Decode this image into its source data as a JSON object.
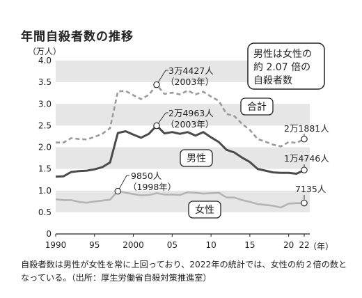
{
  "chart_data": {
    "type": "line",
    "title": "年間自殺者数の推移",
    "ylabel": "（万人）",
    "xlabel": "（年）",
    "ylim": [
      0,
      4.0
    ],
    "xlim": [
      1990,
      2022
    ],
    "y_ticks": [
      "0",
      "0.5",
      "1.0",
      "1.5",
      "2.0",
      "2.5",
      "3.0",
      "3.5",
      "4.0"
    ],
    "x_ticks": [
      {
        "x": 1990,
        "label": "1990"
      },
      {
        "x": 1995,
        "label": "95"
      },
      {
        "x": 2000,
        "label": "2000"
      },
      {
        "x": 2005,
        "label": "05"
      },
      {
        "x": 2010,
        "label": "10"
      },
      {
        "x": 2015,
        "label": "15"
      },
      {
        "x": 2020,
        "label": "20"
      },
      {
        "x": 2022,
        "label": "22"
      }
    ],
    "grid": "alternating horizontal bands",
    "x": [
      1990,
      1991,
      1992,
      1993,
      1994,
      1995,
      1996,
      1997,
      1998,
      1999,
      2000,
      2001,
      2002,
      2003,
      2004,
      2005,
      2006,
      2007,
      2008,
      2009,
      2010,
      2011,
      2012,
      2013,
      2014,
      2015,
      2016,
      2017,
      2018,
      2019,
      2020,
      2021,
      2022
    ],
    "series": [
      {
        "name": "合計",
        "style": "dashed",
        "color": "#9a9a9a",
        "values": [
          2.11,
          2.11,
          2.21,
          2.19,
          2.18,
          2.24,
          2.31,
          2.44,
          3.29,
          3.3,
          3.2,
          3.11,
          3.21,
          3.44,
          3.23,
          3.26,
          3.22,
          3.31,
          3.22,
          3.28,
          3.17,
          3.07,
          2.77,
          2.72,
          2.54,
          2.4,
          2.19,
          2.13,
          2.06,
          2.02,
          2.12,
          2.1,
          2.19
        ]
      },
      {
        "name": "男性",
        "style": "solid",
        "color": "#4a4a4a",
        "values": [
          1.32,
          1.33,
          1.43,
          1.45,
          1.46,
          1.49,
          1.54,
          1.65,
          2.33,
          2.37,
          2.29,
          2.22,
          2.31,
          2.5,
          2.32,
          2.35,
          2.31,
          2.35,
          2.27,
          2.35,
          2.23,
          2.12,
          1.94,
          1.88,
          1.76,
          1.66,
          1.5,
          1.46,
          1.42,
          1.41,
          1.41,
          1.39,
          1.47
        ]
      },
      {
        "name": "女性",
        "style": "solid",
        "color": "#b4b4b4",
        "values": [
          0.8,
          0.78,
          0.78,
          0.74,
          0.72,
          0.75,
          0.77,
          0.79,
          0.99,
          0.95,
          0.92,
          0.89,
          0.9,
          0.94,
          0.91,
          0.91,
          0.9,
          0.96,
          0.95,
          0.93,
          0.94,
          0.95,
          0.84,
          0.84,
          0.78,
          0.74,
          0.69,
          0.67,
          0.65,
          0.61,
          0.7,
          0.71,
          0.71
        ]
      }
    ],
    "annotations": [
      {
        "id": "total-peak",
        "x": 2003,
        "value": 3.4427,
        "text1": "3万4427人",
        "text2": "（2003年）"
      },
      {
        "id": "male-peak",
        "x": 2003,
        "value": 2.4963,
        "text1": "2万4963人",
        "text2": "（2003年）"
      },
      {
        "id": "female-peak",
        "x": 1998,
        "value": 0.985,
        "text1": "9850人",
        "text2": "（1998年）"
      },
      {
        "id": "total-2022",
        "x": 2022,
        "value": 2.1881,
        "text1": "2万1881人"
      },
      {
        "id": "male-2022",
        "x": 2022,
        "value": 1.4746,
        "text1": "1万4746人"
      },
      {
        "id": "female-2022",
        "x": 2022,
        "value": 0.7135,
        "text1": "7135人"
      }
    ],
    "callout": [
      "男性は女性の",
      "約 2.07 倍の",
      "自殺者数"
    ],
    "series_labels": {
      "total": "合計",
      "male": "男性",
      "female": "女性"
    }
  },
  "caption": "自殺者数は男性が女性を常に上回っており、2022年の統計では、女性の約２倍の数となっている。（出所：厚生労働省自殺対策推進室）"
}
